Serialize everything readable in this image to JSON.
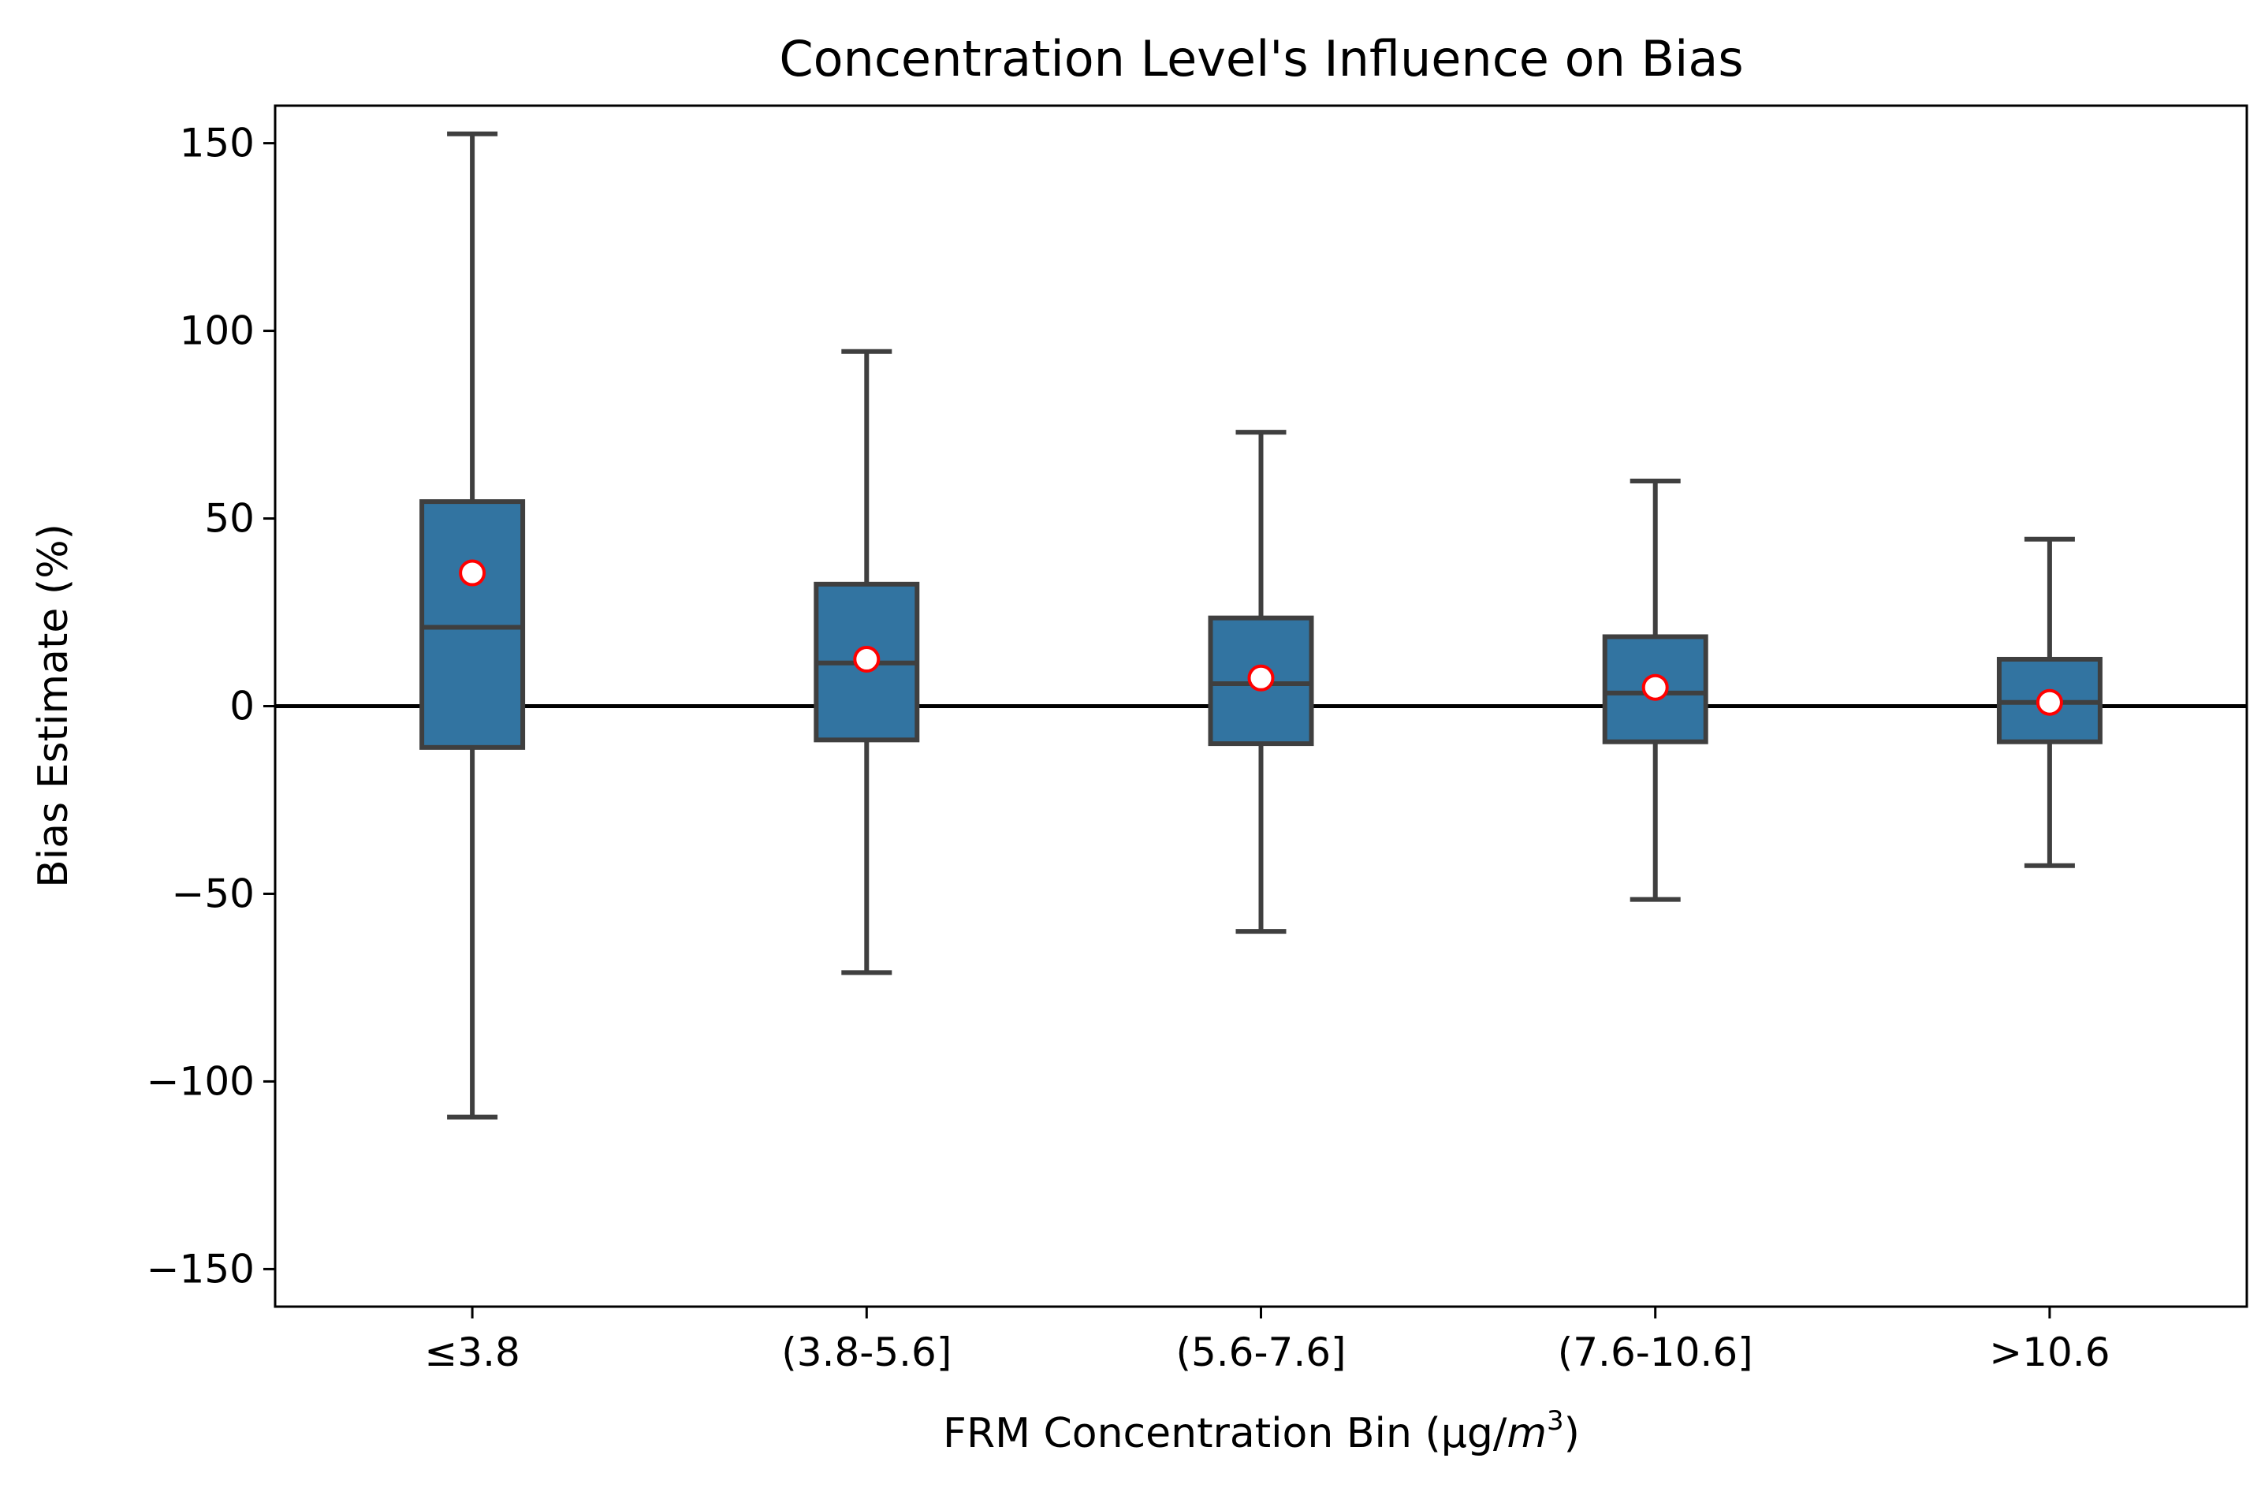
{
  "chart_data": {
    "type": "box",
    "title": "Concentration Level's Influence on Bias",
    "xlabel": {
      "prefix": "FRM Concentration Bin (µg/",
      "italic": "m",
      "superscript": "3",
      "suffix": ")"
    },
    "ylabel": "Bias Estimate (%)",
    "ylim": [
      -160,
      160
    ],
    "yticks": [
      150,
      100,
      50,
      0,
      -50,
      -100,
      -150
    ],
    "ytick_labels": [
      "150",
      "100",
      "50",
      "0",
      "−50",
      "−100",
      "−150"
    ],
    "reference_line": 0,
    "categories": [
      "≤3.8",
      "(3.8-5.6]",
      "(5.6-7.6]",
      "(7.6-10.6]",
      ">10.6"
    ],
    "boxes": [
      {
        "whisker_low": -109.5,
        "q1": -11,
        "median": 21,
        "q3": 54.5,
        "whisker_high": 152.5,
        "mean": 35.5
      },
      {
        "whisker_low": -71,
        "q1": -9,
        "median": 11.5,
        "q3": 32.5,
        "whisker_high": 94.5,
        "mean": 12.5
      },
      {
        "whisker_low": -60,
        "q1": -10,
        "median": 6,
        "q3": 23.5,
        "whisker_high": 73,
        "mean": 7.5
      },
      {
        "whisker_low": -51.5,
        "q1": -9.5,
        "median": 3.5,
        "q3": 18.5,
        "whisker_high": 60,
        "mean": 5
      },
      {
        "whisker_low": -42.5,
        "q1": -9.5,
        "median": 1,
        "q3": 12.5,
        "whisker_high": 44.5,
        "mean": 1
      }
    ],
    "colors": {
      "box_fill": "#3274a1",
      "box_edge": "#3f3f3f",
      "mean_marker_fill": "#ffffff",
      "mean_marker_edge": "#ff0000",
      "reference_line": "#000000"
    }
  }
}
